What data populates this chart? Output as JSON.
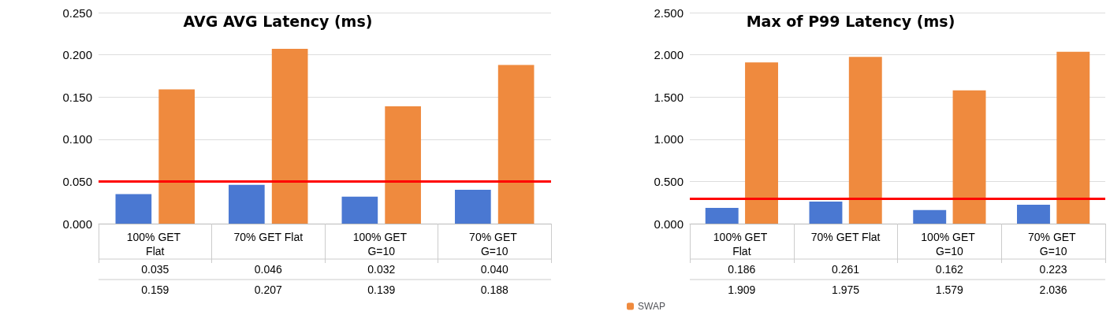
{
  "chart_data": [
    {
      "type": "bar",
      "title": "AVG AVG Latency (ms)",
      "categories": [
        "100% GET Flat",
        "70% GET Flat",
        "100% GET G=10",
        "70% GET G=10"
      ],
      "series": [
        {
          "color": "#4a78d2",
          "values": [
            0.035,
            0.046,
            0.032,
            0.04
          ],
          "value_labels": [
            "0.035",
            "0.046",
            "0.032",
            "0.040"
          ]
        },
        {
          "color": "#ef8a3e",
          "values": [
            0.159,
            0.207,
            0.139,
            0.188
          ],
          "value_labels": [
            "0.159",
            "0.207",
            "0.139",
            "0.188"
          ]
        }
      ],
      "ylim": [
        0,
        0.25
      ],
      "yticks": [
        {
          "value": 0,
          "label": "0.000"
        },
        {
          "value": 0.05,
          "label": "0.050"
        },
        {
          "value": 0.1,
          "label": "0.100"
        },
        {
          "value": 0.15,
          "label": "0.150"
        },
        {
          "value": 0.2,
          "label": "0.200"
        },
        {
          "value": 0.25,
          "label": "0.250"
        }
      ],
      "grid": "y",
      "ref_lines": [
        {
          "axis": "y",
          "value": 0.05,
          "color": "#ff0000"
        }
      ]
    },
    {
      "type": "bar",
      "title": "Max of P99 Latency (ms)",
      "categories": [
        "100% GET Flat",
        "70% GET Flat",
        "100% GET G=10",
        "70% GET G=10"
      ],
      "series": [
        {
          "color": "#4a78d2",
          "values": [
            0.186,
            0.261,
            0.162,
            0.223
          ],
          "value_labels": [
            "0.186",
            "0.261",
            "0.162",
            "0.223"
          ]
        },
        {
          "name": "SWAP",
          "color": "#ef8a3e",
          "values": [
            1.909,
            1.975,
            1.579,
            2.036
          ],
          "value_labels": [
            "1.909",
            "1.975",
            "1.579",
            "2.036"
          ]
        }
      ],
      "ylim": [
        0,
        2.5
      ],
      "yticks": [
        {
          "value": 0,
          "label": "0.000"
        },
        {
          "value": 0.5,
          "label": "0.500"
        },
        {
          "value": 1,
          "label": "1.000"
        },
        {
          "value": 1.5,
          "label": "1.500"
        },
        {
          "value": 2,
          "label": "2.000"
        },
        {
          "value": 2.5,
          "label": "2.500"
        }
      ],
      "grid": "y",
      "legend": "bottom left",
      "ref_lines": [
        {
          "axis": "y",
          "value": 0.3,
          "color": "#ff0000"
        }
      ]
    }
  ]
}
